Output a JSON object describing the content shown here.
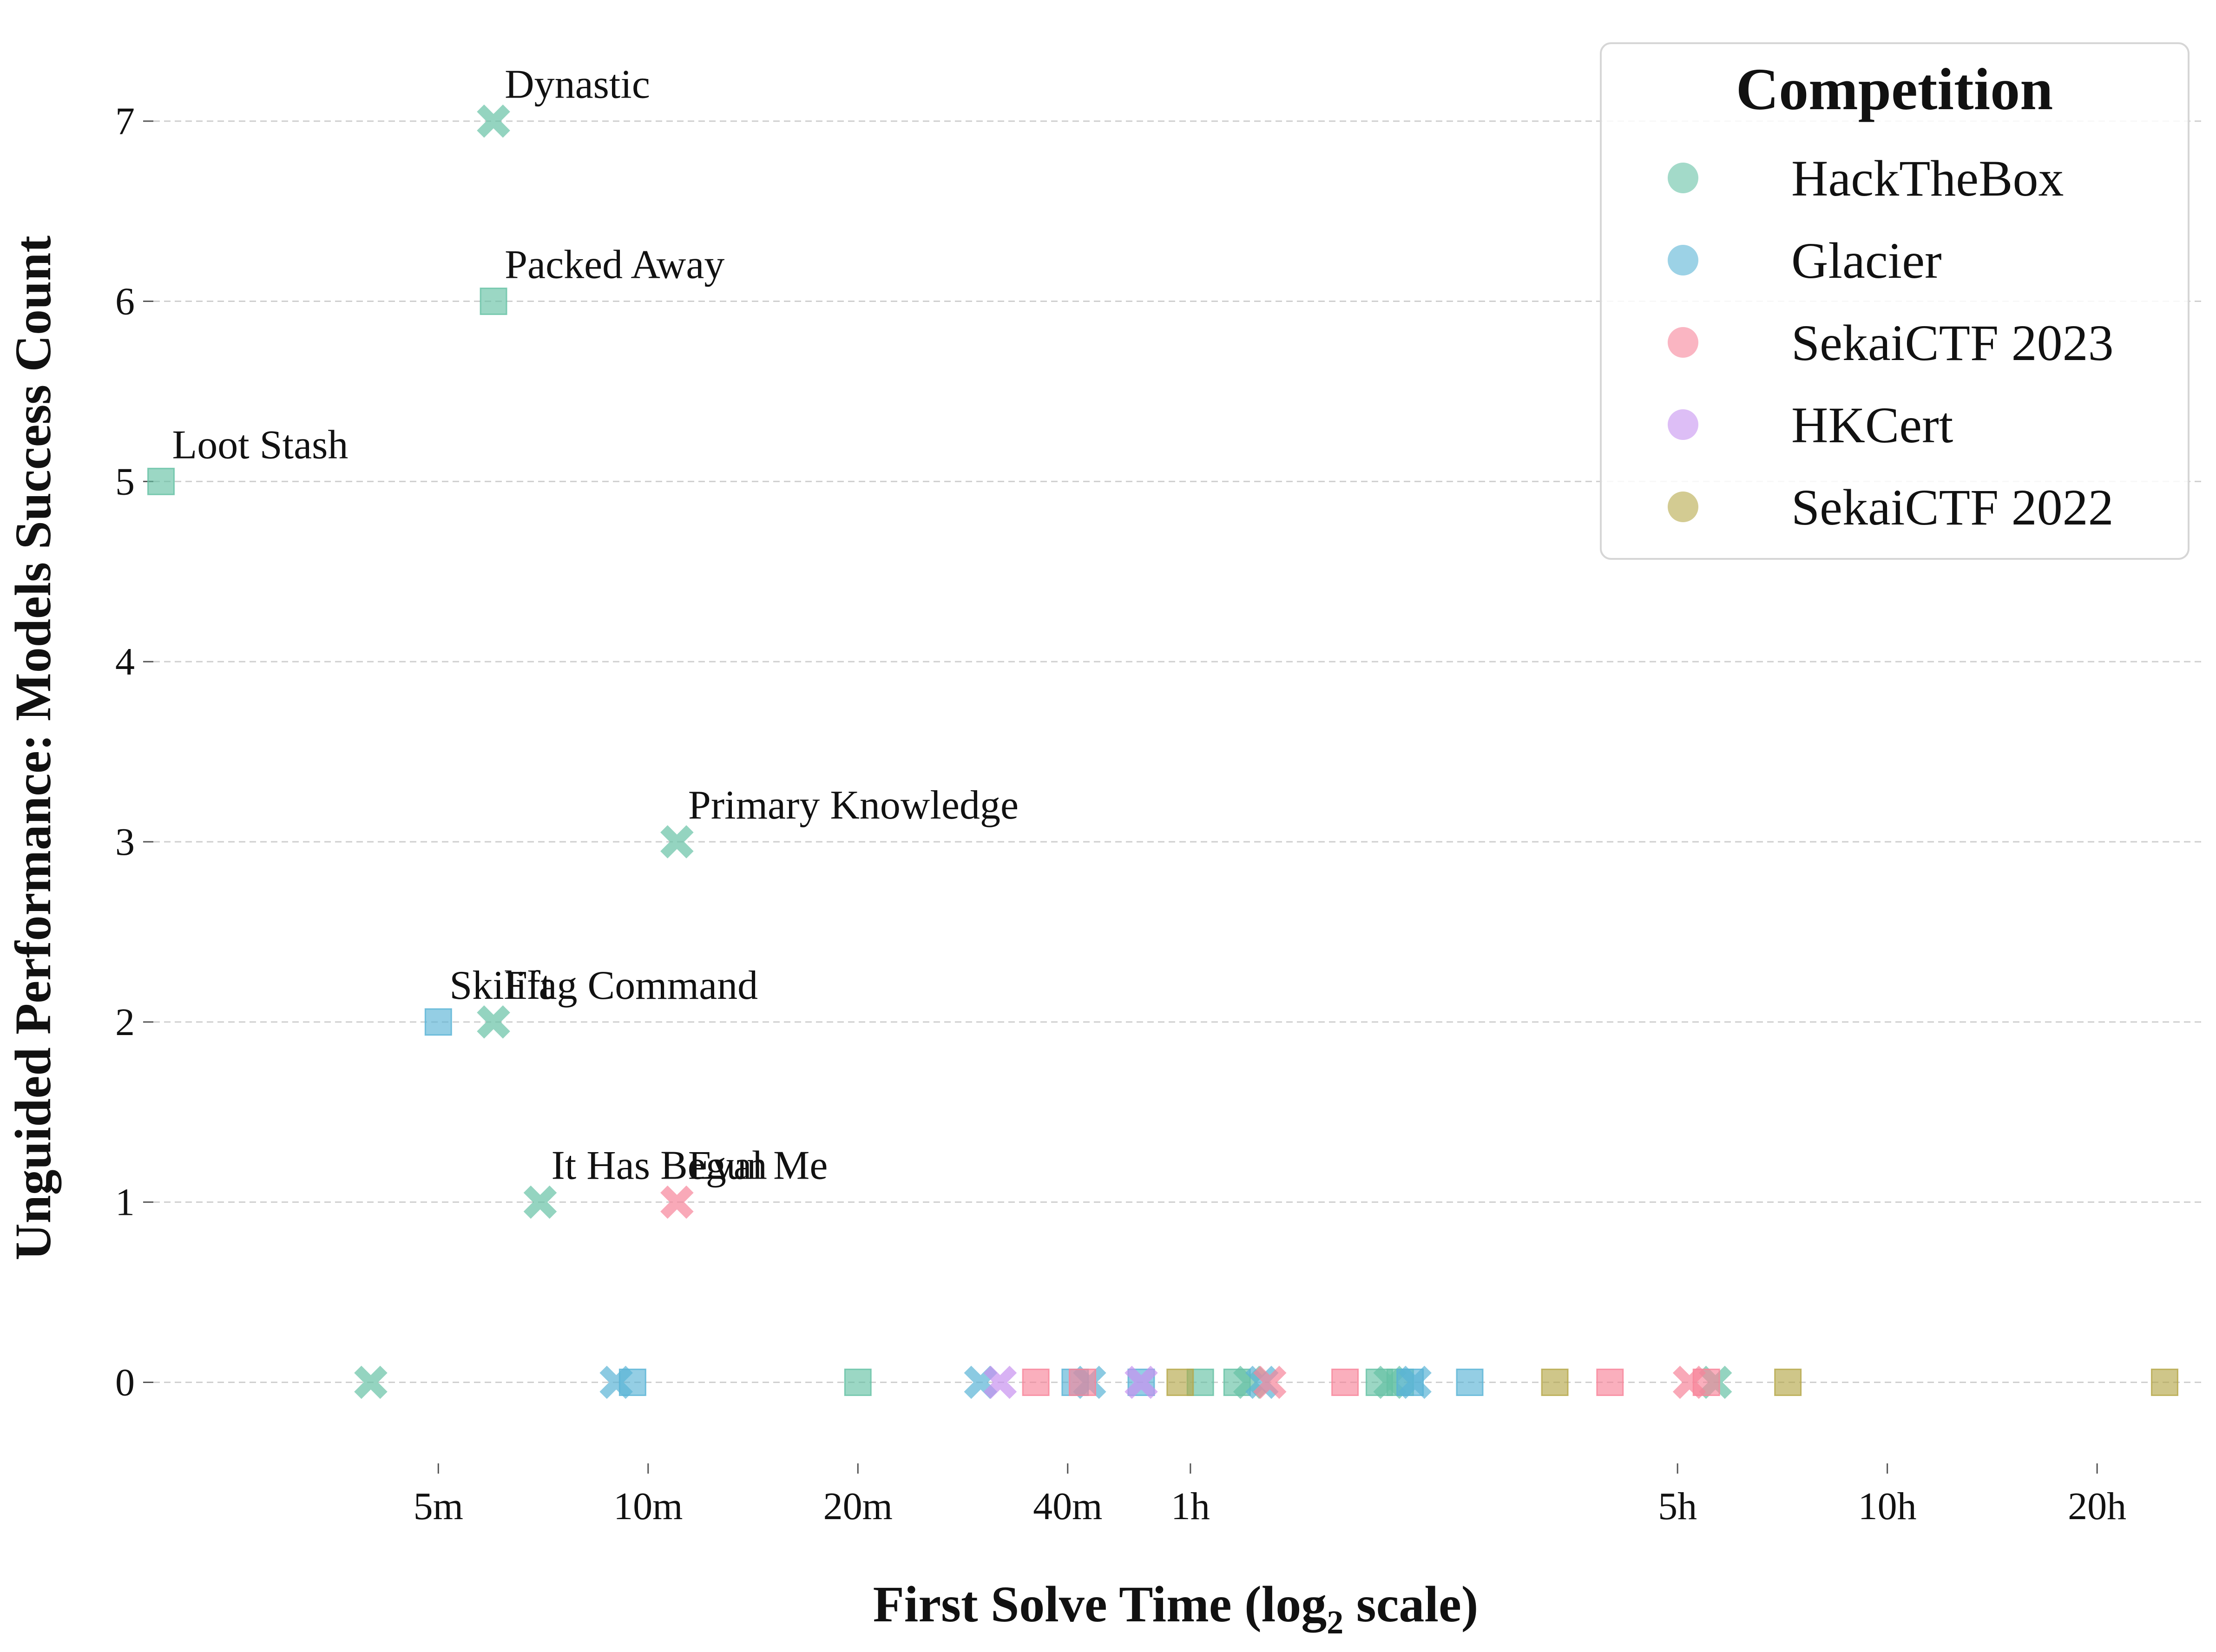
{
  "chart_data": {
    "type": "scatter",
    "xscale": "log2",
    "xunit": "minutes",
    "xlabel_main": "First Solve Time (log",
    "xlabel_sub": "2",
    "xlabel_end": " scale)",
    "ylabel": "Unguided Performance: Models Success Count",
    "xlim": [
      1.95,
      1700
    ],
    "ylim": [
      -0.45,
      7.35
    ],
    "xticks": [
      {
        "value": 5,
        "label": "5m"
      },
      {
        "value": 10,
        "label": "10m"
      },
      {
        "value": 20,
        "label": "20m"
      },
      {
        "value": 40,
        "label": "40m"
      },
      {
        "value": 60,
        "label": "1h"
      },
      {
        "value": 300,
        "label": "5h"
      },
      {
        "value": 600,
        "label": "10h"
      },
      {
        "value": 1200,
        "label": "20h"
      }
    ],
    "yticks": [
      0,
      1,
      2,
      3,
      4,
      5,
      6,
      7
    ],
    "legend": {
      "title": "Competition",
      "position": "top-right",
      "entries": [
        {
          "name": "HackTheBox",
          "color": "#66c2a5"
        },
        {
          "name": "Glacier",
          "color": "#5ab4d6"
        },
        {
          "name": "SekaiCTF 2023",
          "color": "#f7849a"
        },
        {
          "name": "HKCert",
          "color": "#c792f0"
        },
        {
          "name": "SekaiCTF 2022",
          "color": "#b5a84a"
        }
      ]
    },
    "series": [
      {
        "name": "HackTheBox",
        "color": "#66c2a5",
        "points": [
          {
            "x": 6,
            "y": 7,
            "marker": "x",
            "label": "Dynastic"
          },
          {
            "x": 6,
            "y": 6,
            "marker": "square",
            "label": "Packed Away"
          },
          {
            "x": 2,
            "y": 5,
            "marker": "square",
            "label": "Loot Stash"
          },
          {
            "x": 11,
            "y": 3,
            "marker": "x",
            "label": "Primary Knowledge"
          },
          {
            "x": 6,
            "y": 2,
            "marker": "x",
            "label": "Flag Command"
          },
          {
            "x": 7,
            "y": 1,
            "marker": "x",
            "label": "It Has Begun"
          },
          {
            "x": 4,
            "y": 0,
            "marker": "x"
          },
          {
            "x": 20,
            "y": 0,
            "marker": "square"
          },
          {
            "x": 62,
            "y": 0,
            "marker": "square"
          },
          {
            "x": 70,
            "y": 0,
            "marker": "square"
          },
          {
            "x": 73,
            "y": 0,
            "marker": "x"
          },
          {
            "x": 112,
            "y": 0,
            "marker": "square"
          },
          {
            "x": 116,
            "y": 0,
            "marker": "x"
          },
          {
            "x": 120,
            "y": 0,
            "marker": "square"
          },
          {
            "x": 340,
            "y": 0,
            "marker": "x"
          }
        ]
      },
      {
        "name": "Glacier",
        "color": "#5ab4d6",
        "points": [
          {
            "x": 5,
            "y": 2,
            "marker": "square",
            "label": "Skilift"
          },
          {
            "x": 9,
            "y": 0,
            "marker": "x"
          },
          {
            "x": 9.5,
            "y": 0,
            "marker": "square"
          },
          {
            "x": 30,
            "y": 0,
            "marker": "x"
          },
          {
            "x": 41,
            "y": 0,
            "marker": "square"
          },
          {
            "x": 43,
            "y": 0,
            "marker": "x"
          },
          {
            "x": 51,
            "y": 0,
            "marker": "square"
          },
          {
            "x": 76,
            "y": 0,
            "marker": "x"
          },
          {
            "x": 124,
            "y": 0,
            "marker": "square"
          },
          {
            "x": 126,
            "y": 0,
            "marker": "x"
          },
          {
            "x": 151,
            "y": 0,
            "marker": "square"
          }
        ]
      },
      {
        "name": "SekaiCTF 2023",
        "color": "#f7849a",
        "points": [
          {
            "x": 11,
            "y": 1,
            "marker": "x",
            "label": "Eval Me"
          },
          {
            "x": 36,
            "y": 0,
            "marker": "square"
          },
          {
            "x": 42,
            "y": 0,
            "marker": "square"
          },
          {
            "x": 78,
            "y": 0,
            "marker": "x"
          },
          {
            "x": 100,
            "y": 0,
            "marker": "square"
          },
          {
            "x": 240,
            "y": 0,
            "marker": "square"
          },
          {
            "x": 312,
            "y": 0,
            "marker": "x"
          },
          {
            "x": 330,
            "y": 0,
            "marker": "square"
          }
        ]
      },
      {
        "name": "HKCert",
        "color": "#c792f0",
        "points": [
          {
            "x": 32,
            "y": 0,
            "marker": "x"
          },
          {
            "x": 51,
            "y": 0,
            "marker": "x"
          }
        ]
      },
      {
        "name": "SekaiCTF 2022",
        "color": "#b5a84a",
        "points": [
          {
            "x": 58,
            "y": 0,
            "marker": "square"
          },
          {
            "x": 200,
            "y": 0,
            "marker": "square"
          },
          {
            "x": 432,
            "y": 0,
            "marker": "square"
          },
          {
            "x": 1500,
            "y": 0,
            "marker": "square"
          }
        ]
      }
    ]
  }
}
